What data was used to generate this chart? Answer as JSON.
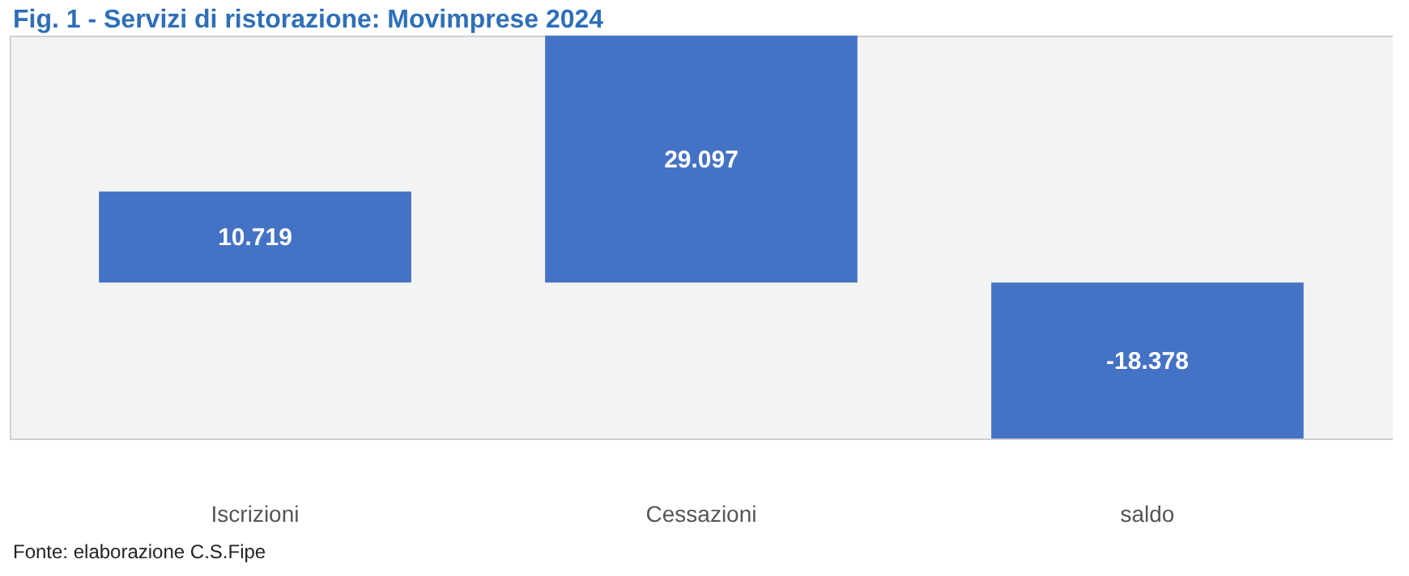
{
  "chart_data": {
    "type": "bar",
    "title": "Fig. 1 - Servizi di ristorazione: Movimprese 2024",
    "categories": [
      "Iscrizioni",
      "Cessazioni",
      "saldo"
    ],
    "values": [
      10719,
      29097,
      -18378
    ],
    "value_labels": [
      "10.719",
      "29.097",
      "-18.378"
    ],
    "color": "#4472c4",
    "annotations": [
      "Fonte: elaborazione C.S.Fipe"
    ]
  }
}
